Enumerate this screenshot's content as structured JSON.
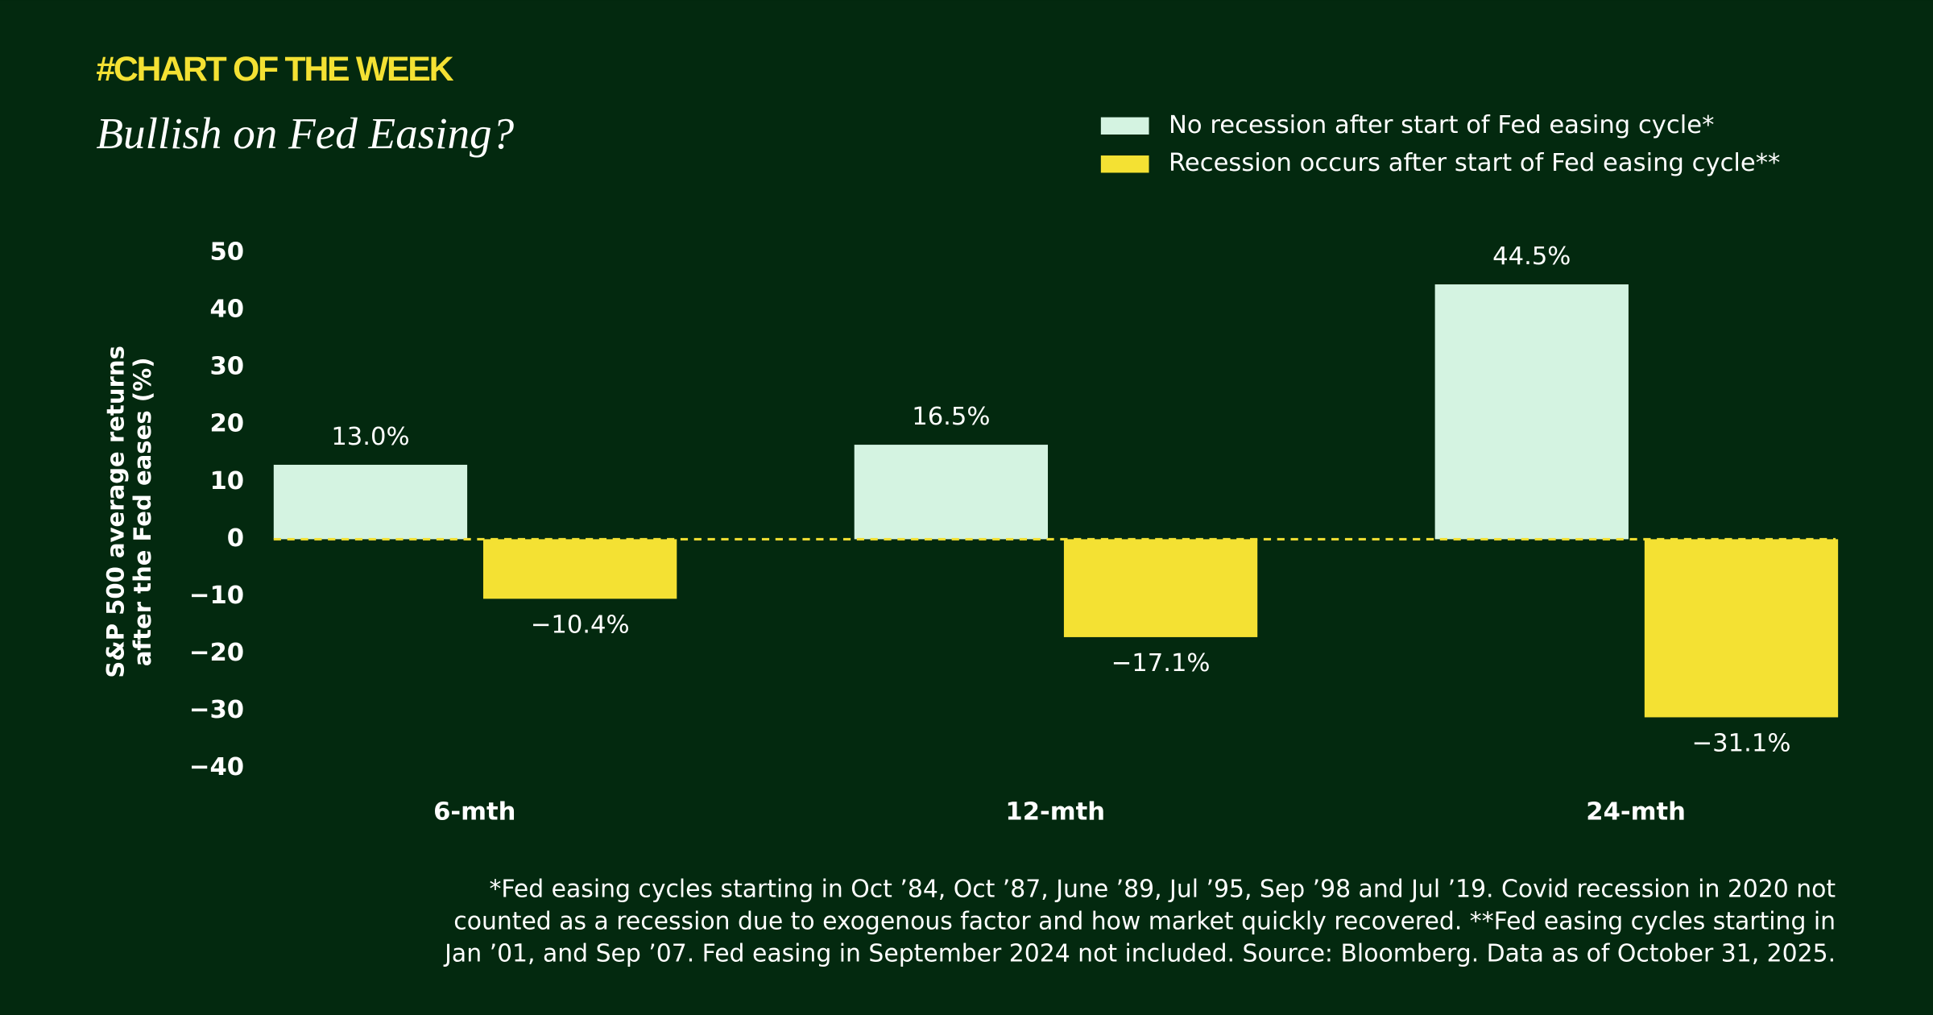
{
  "chart_data": {
    "type": "bar",
    "kicker": "#CHART OF THE WEEK",
    "title": "Bullish on Fed Easing?",
    "ylabel": [
      "S&P 500 average returns",
      "after the Fed eases (%)"
    ],
    "categories": [
      "6-mth",
      "12-mth",
      "24-mth"
    ],
    "series": [
      {
        "name": "No recession after start of Fed easing cycle*",
        "color": "#d4f3e1",
        "values": [
          13.0,
          16.5,
          44.5
        ],
        "value_labels": [
          "13.0%",
          "16.5%",
          "44.5%"
        ]
      },
      {
        "name": "Recession occurs after start of Fed easing cycle**",
        "color": "#f4e133",
        "values": [
          -10.4,
          -17.1,
          -31.1
        ],
        "value_labels": [
          "−10.4%",
          "−17.1%",
          "−31.1%"
        ]
      }
    ],
    "ylim": [
      -40,
      50
    ],
    "yticks": [
      50,
      40,
      30,
      20,
      10,
      0,
      {
        "value": -10,
        "label": "−10"
      },
      {
        "value": -20,
        "label": "−20"
      },
      {
        "value": -30,
        "label": "−30"
      },
      {
        "value": -40,
        "label": "−40"
      }
    ],
    "grid": false,
    "notes": [
      "*Fed easing cycles starting in Oct ’84, Oct ’87, June ’89, Jul ’95, Sep ’98 and Jul ’19. Covid recession in 2020 not",
      "counted as a recession due to exogenous factor and how market quickly recovered. **Fed easing cycles starting in",
      "Jan ’01, and Sep ’07. Fed easing in September 2024 not included. Source: Bloomberg. Data as of October 31, 2025."
    ]
  }
}
